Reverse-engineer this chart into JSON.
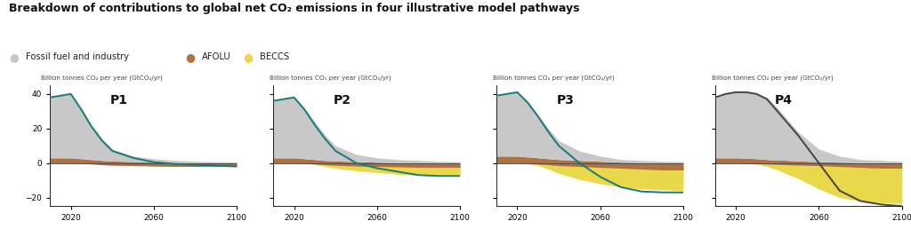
{
  "title": "Breakdown of contributions to global net CO₂ emissions in four illustrative model pathways",
  "ylabel": "Billion tonnes CO₂ per year (GtCO₂/yr)",
  "legend": [
    {
      "label": "Fossil fuel and industry",
      "color": "#c8c8c8"
    },
    {
      "label": "AFOLU",
      "color": "#b07040"
    },
    {
      "label": "BECCS",
      "color": "#e8d84a"
    }
  ],
  "panels": [
    "P1",
    "P2",
    "P3",
    "P4"
  ],
  "xlim": [
    2010,
    2100
  ],
  "ylim": [
    -25,
    45
  ],
  "yticks": [
    -20,
    0,
    20,
    40
  ],
  "xticks": [
    2020,
    2060,
    2100
  ],
  "fossil_color": "#c8c8c8",
  "afolu_color": "#b07040",
  "beccs_color": "#e8d84a",
  "line_color": "#1a7a7a",
  "line_color_p4": "#444444",
  "background_color": "#ffffff",
  "years": [
    2010,
    2015,
    2020,
    2025,
    2030,
    2035,
    2040,
    2050,
    2060,
    2070,
    2080,
    2090,
    2100
  ],
  "P1": {
    "fossil_top": [
      38,
      39,
      40,
      32,
      22,
      14,
      8,
      4,
      2.5,
      1.5,
      1.0,
      0.8,
      0.5
    ],
    "afolu_pos": [
      3,
      3,
      3,
      2.5,
      2,
      1.5,
      1.2,
      0.8,
      0.5,
      0.3,
      0.3,
      0.3,
      0.3
    ],
    "afolu_neg": [
      0,
      0,
      0,
      -0.3,
      -0.6,
      -1.0,
      -1.3,
      -1.5,
      -1.8,
      -2.0,
      -2.0,
      -2.0,
      -2.0
    ],
    "beccs_neg": [
      0,
      0,
      0,
      0,
      0,
      0,
      0,
      0,
      0,
      0,
      0,
      0,
      0
    ],
    "net_line": [
      38,
      39,
      40,
      31,
      21,
      13,
      7,
      3,
      0.5,
      -0.5,
      -1.0,
      -1.5,
      -2.0
    ]
  },
  "P2": {
    "fossil_top": [
      36,
      37,
      38,
      32,
      24,
      16,
      10,
      5,
      3,
      2,
      1.5,
      1.0,
      0.8
    ],
    "afolu_pos": [
      3,
      3,
      3,
      2.5,
      2,
      1.5,
      1.2,
      0.8,
      0.5,
      0.3,
      0.3,
      0.3,
      0.3
    ],
    "afolu_neg": [
      0,
      0,
      0,
      -0.3,
      -0.6,
      -1.0,
      -1.3,
      -1.8,
      -2.0,
      -2.2,
      -2.5,
      -2.5,
      -2.5
    ],
    "beccs_neg": [
      0,
      0,
      0,
      -0.3,
      -0.8,
      -2.0,
      -3.0,
      -4.5,
      -5.5,
      -6.5,
      -7.0,
      -7.0,
      -7.0
    ],
    "net_line": [
      36,
      37,
      38,
      31,
      22,
      14,
      7,
      0,
      -3,
      -5,
      -7,
      -7.5,
      -7.5
    ]
  },
  "P3": {
    "fossil_top": [
      39,
      40,
      41,
      36,
      28,
      20,
      13,
      7,
      4,
      2,
      1.5,
      1.0,
      0.8
    ],
    "afolu_pos": [
      4,
      4,
      4,
      3.5,
      3,
      2.5,
      2,
      1.5,
      1,
      0.5,
      0.3,
      0.3,
      0.3
    ],
    "afolu_neg": [
      0,
      0,
      0,
      -0.3,
      -0.6,
      -1.0,
      -1.5,
      -2.0,
      -2.5,
      -3.0,
      -3.5,
      -4.0,
      -4.0
    ],
    "beccs_neg": [
      0,
      0,
      0,
      -0.5,
      -1.5,
      -3.5,
      -6.0,
      -9.5,
      -12,
      -14,
      -15,
      -15.5,
      -16
    ],
    "net_line": [
      39,
      40,
      41,
      35,
      27,
      18,
      10,
      0,
      -8,
      -14,
      -16.5,
      -17,
      -17
    ]
  },
  "P4": {
    "fossil_top": [
      38,
      40,
      41,
      41,
      40,
      38,
      32,
      18,
      8,
      4,
      2,
      1.5,
      1.0
    ],
    "afolu_pos": [
      3,
      3,
      3,
      2.8,
      2.5,
      2.0,
      1.8,
      1.2,
      0.8,
      0.5,
      0.3,
      0.3,
      0.3
    ],
    "afolu_neg": [
      0,
      0,
      0,
      -0.2,
      -0.4,
      -0.6,
      -0.8,
      -1.2,
      -1.5,
      -2.0,
      -2.5,
      -3.0,
      -3.0
    ],
    "beccs_neg": [
      0,
      0,
      0,
      -0.2,
      -0.8,
      -2.0,
      -4.0,
      -9.0,
      -15,
      -20,
      -22,
      -23,
      -23.5
    ],
    "net_line": [
      38,
      40,
      41,
      41,
      40,
      37,
      30,
      16,
      0,
      -16,
      -22,
      -24,
      -25
    ]
  }
}
